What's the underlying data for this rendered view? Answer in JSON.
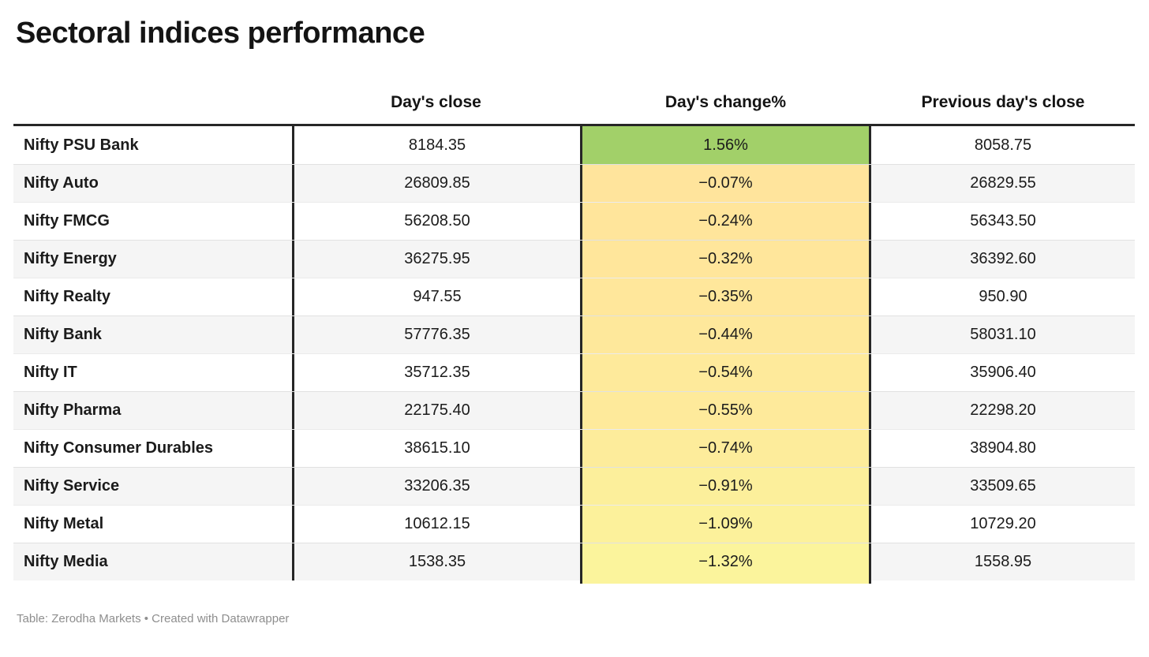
{
  "chart_data": {
    "type": "table",
    "title": "Sectoral indices performance",
    "columns": {
      "label": "",
      "close": "Day's close",
      "change": "Day's change%",
      "prev": "Previous day's close"
    },
    "rows": [
      {
        "label": "Nifty PSU Bank",
        "close": "8184.35",
        "change": "1.56%",
        "change_value": 1.56,
        "change_color": "#a2d069",
        "prev": "8058.75"
      },
      {
        "label": "Nifty Auto",
        "close": "26809.85",
        "change": "−0.07%",
        "change_value": -0.07,
        "change_color": "#ffe49c",
        "prev": "26829.55"
      },
      {
        "label": "Nifty FMCG",
        "close": "56208.50",
        "change": "−0.24%",
        "change_value": -0.24,
        "change_color": "#ffe59b",
        "prev": "56343.50"
      },
      {
        "label": "Nifty Energy",
        "close": "36275.95",
        "change": "−0.32%",
        "change_value": -0.32,
        "change_color": "#ffe69b",
        "prev": "36392.60"
      },
      {
        "label": "Nifty Realty",
        "close": "947.55",
        "change": "−0.35%",
        "change_value": -0.35,
        "change_color": "#ffe79b",
        "prev": "950.90"
      },
      {
        "label": "Nifty Bank",
        "close": "57776.35",
        "change": "−0.44%",
        "change_value": -0.44,
        "change_color": "#fee89b",
        "prev": "58031.10"
      },
      {
        "label": "Nifty IT",
        "close": "35712.35",
        "change": "−0.54%",
        "change_value": -0.54,
        "change_color": "#feea9b",
        "prev": "35906.40"
      },
      {
        "label": "Nifty Pharma",
        "close": "22175.40",
        "change": "−0.55%",
        "change_value": -0.55,
        "change_color": "#feea9b",
        "prev": "22298.20"
      },
      {
        "label": "Nifty Consumer Durables",
        "close": "38615.10",
        "change": "−0.74%",
        "change_value": -0.74,
        "change_color": "#fdec9b",
        "prev": "38904.80"
      },
      {
        "label": "Nifty Service",
        "close": "33206.35",
        "change": "−0.91%",
        "change_value": -0.91,
        "change_color": "#fcef9b",
        "prev": "33509.65"
      },
      {
        "label": "Nifty Metal",
        "close": "10612.15",
        "change": "−1.09%",
        "change_value": -1.09,
        "change_color": "#fcf19b",
        "prev": "10729.20"
      },
      {
        "label": "Nifty Media",
        "close": "1538.35",
        "change": "−1.32%",
        "change_value": -1.32,
        "change_color": "#fbf49c",
        "prev": "1558.95"
      }
    ]
  },
  "footer": "Table: Zerodha Markets • Created with Datawrapper",
  "colors": {
    "positive_cell": "#a2d069",
    "negative_cell_near_zero": "#ffe49c",
    "negative_cell_most": "#fbf49c",
    "border_black": "#262626",
    "zebra_row": "#f5f5f5",
    "footer_gray": "#8e8e8e"
  }
}
